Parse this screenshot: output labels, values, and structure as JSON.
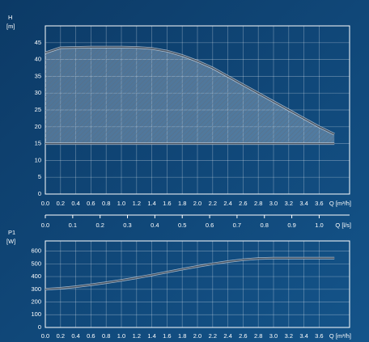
{
  "chart_data": [
    {
      "type": "range-area",
      "y_label": "H",
      "y_unit": "[m]",
      "x_label": "Q [m³/h]",
      "x2_label": "Q [l/s]",
      "x": [
        0,
        0.2,
        0.4,
        0.6,
        0.8,
        1.0,
        1.2,
        1.4,
        1.6,
        1.8,
        2.0,
        2.2,
        2.4,
        2.6,
        2.8,
        3.0,
        3.2,
        3.4,
        3.6,
        3.8
      ],
      "series": [
        {
          "color": "#4a5563",
          "values": [
            42,
            43.5,
            43.6,
            43.7,
            43.7,
            43.7,
            43.6,
            43.3,
            42.5,
            41.2,
            39.5,
            37.5,
            35,
            32.5,
            30,
            27.5,
            25,
            22.5,
            20,
            17.8
          ]
        },
        {
          "color": "#4a5563",
          "values": [
            15,
            15,
            15,
            15,
            15,
            15,
            15,
            15,
            15,
            15,
            15,
            15,
            15,
            15,
            15,
            15,
            15,
            15,
            15,
            15
          ]
        }
      ],
      "xlim": [
        0,
        4.0
      ],
      "xticks": [
        {
          "value": 0,
          "label": "0.0"
        },
        0.2,
        0.4,
        0.6,
        0.8,
        {
          "value": 1,
          "label": "1.0"
        },
        1.2,
        1.4,
        1.6,
        1.8,
        {
          "value": 2,
          "label": "2.0"
        },
        2.2,
        2.4,
        2.6,
        2.8,
        {
          "value": 3,
          "label": "3.0"
        },
        3.2,
        3.4,
        3.6
      ],
      "ylim": [
        0,
        50
      ],
      "yticks": [
        0,
        5,
        10,
        15,
        20,
        25,
        30,
        35,
        40,
        45
      ],
      "x2lim": [
        0,
        1.111
      ],
      "x2ticks": [
        {
          "value": 0,
          "label": "0.0"
        },
        0.1,
        0.2,
        0.3,
        0.4,
        0.5,
        0.6,
        0.7,
        0.8,
        0.9,
        {
          "value": 1,
          "label": "1.0"
        }
      ],
      "grid": true
    },
    {
      "type": "line",
      "y_label": "P1",
      "y_unit": "[W]",
      "x_label": "Q [m³/h]",
      "x": [
        0,
        0.2,
        0.4,
        0.6,
        0.8,
        1.0,
        1.2,
        1.4,
        1.6,
        1.8,
        2.0,
        2.2,
        2.4,
        2.6,
        2.8,
        3.0,
        3.2,
        3.4,
        3.6,
        3.8
      ],
      "series": [
        {
          "color": "#4a5563",
          "values": [
            300,
            308,
            320,
            335,
            352,
            370,
            390,
            412,
            435,
            458,
            480,
            500,
            518,
            532,
            542,
            545,
            545,
            545,
            545,
            545
          ]
        }
      ],
      "xlim": [
        0,
        4.0
      ],
      "xticks": [
        {
          "value": 0,
          "label": "0.0"
        },
        0.2,
        0.4,
        0.6,
        0.8,
        {
          "value": 1,
          "label": "1.0"
        },
        1.2,
        1.4,
        1.6,
        1.8,
        {
          "value": 2,
          "label": "2.0"
        },
        2.2,
        2.4,
        2.6,
        2.8,
        {
          "value": 3,
          "label": "3.0"
        },
        3.2,
        3.4,
        3.6
      ],
      "ylim": [
        0,
        680
      ],
      "yticks": [
        0,
        100,
        200,
        300,
        400,
        500,
        600
      ],
      "grid": true
    }
  ]
}
